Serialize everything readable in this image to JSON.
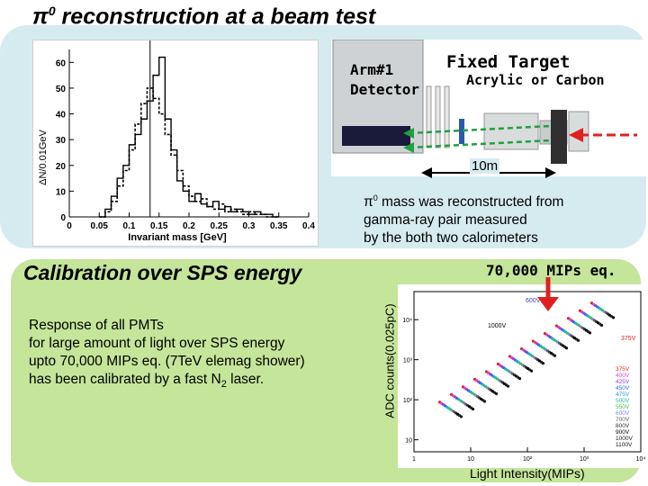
{
  "title": {
    "symbol": "π",
    "sup": "0",
    "text": " reconstruction at a beam test"
  },
  "histogram": {
    "ylabel": "ΔN/0.01GeV",
    "xlabel": "Invariant mass [GeV]",
    "y_ticks": [
      "0",
      "10",
      "20",
      "30",
      "40",
      "50",
      "60"
    ],
    "x_ticks": [
      "0",
      "0.05",
      "0.1",
      "0.15",
      "0.2",
      "0.25",
      "0.3",
      "0.35",
      "0.4"
    ]
  },
  "chart_data": {
    "type": "bar",
    "title": "",
    "xlabel": "Invariant mass [GeV]",
    "ylabel": "ΔN/0.01GeV",
    "xlim": [
      0,
      0.4
    ],
    "ylim": [
      0,
      65
    ],
    "x": [
      0.05,
      0.06,
      0.07,
      0.08,
      0.09,
      0.1,
      0.11,
      0.12,
      0.13,
      0.14,
      0.15,
      0.16,
      0.17,
      0.18,
      0.19,
      0.2,
      0.21,
      0.22,
      0.23,
      0.24,
      0.25,
      0.26,
      0.27,
      0.28,
      0.29,
      0.3,
      0.31,
      0.32,
      0.33,
      0.34
    ],
    "series": [
      {
        "values": [
          0,
          3,
          8,
          15,
          20,
          28,
          32,
          38,
          45,
          55,
          62,
          38,
          26,
          14,
          10,
          6,
          9,
          5,
          4,
          6,
          3,
          4,
          2,
          3,
          2,
          1,
          2,
          1,
          1,
          0
        ]
      },
      {
        "values": [
          0,
          2,
          6,
          12,
          18,
          26,
          36,
          44,
          50,
          46,
          40,
          32,
          24,
          18,
          12,
          8,
          6,
          7,
          4,
          3,
          5,
          2,
          3,
          2,
          1,
          2,
          1,
          1,
          0,
          0
        ]
      }
    ]
  },
  "setup": {
    "arm_line1": "Arm#1",
    "arm_line2": "Detector",
    "target_title": "Fixed Target",
    "target_material": "Acrylic or Carbon",
    "distance": "10m"
  },
  "description": {
    "line1_symbol": "π",
    "line1_sup": "0",
    "line1_rest": " mass was reconstructed from",
    "line2": "gamma-ray pair measured",
    "line3": "by the both two calorimeters"
  },
  "calibration": {
    "heading": "Calibration over SPS energy",
    "line1": "Response of all PMTs",
    "line2": "for large amount of light over SPS energy",
    "line3": "upto 70,000 MIPs eq. (7TeV elemag shower)",
    "line4_pre": "has been calibrated  by a fast N",
    "line4_sub": "2",
    "line4_post": " laser."
  },
  "pmt_plot": {
    "ylabel": "ADC counts(0.025pC)",
    "xlabel": "Light Intensity(MIPs)",
    "annotation": "70,000 MIPs eq.",
    "y_ticks": [
      "10",
      "10²",
      "10³",
      "10⁴"
    ],
    "x_ticks": [
      "1",
      "10",
      "10²",
      "10³",
      "10⁴"
    ],
    "legend": [
      "375V",
      "400V",
      "425V",
      "450V",
      "475V",
      "500V",
      "550V",
      "600V",
      "700V",
      "800V",
      "900V",
      "1000V",
      "1100V"
    ],
    "callouts": [
      "600V",
      "1000V",
      "375V"
    ],
    "colors": [
      "#e02020",
      "#e040c0",
      "#a040e0",
      "#4060e0",
      "#20a0e0",
      "#20c0a0",
      "#40c040",
      "#8080ff",
      "#606060",
      "#303030",
      "#000000",
      "#202020",
      "#101010"
    ],
    "arrow_color": "#e02020"
  }
}
